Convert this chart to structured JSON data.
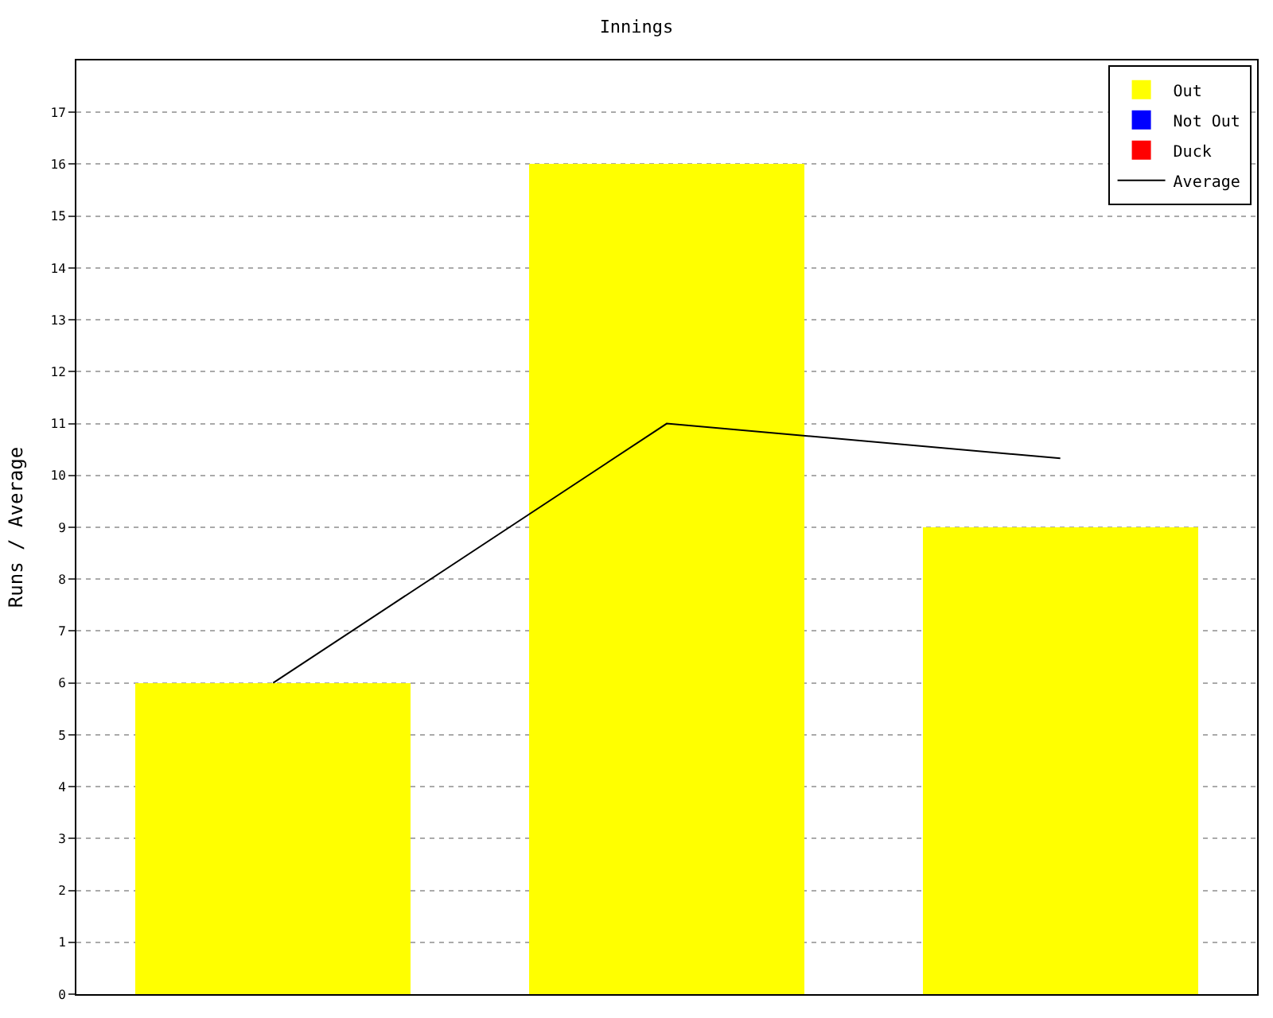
{
  "chart_data": {
    "type": "bar",
    "title": "Innings",
    "ylabel": "Runs / Average",
    "categories": [
      null,
      null,
      null
    ],
    "series": [
      {
        "name": "Average",
        "type": "line",
        "color": "#000000",
        "values": [
          6,
          11,
          10.33
        ]
      },
      {
        "name": "Out",
        "color": "#ffff00",
        "values": [
          6,
          16,
          9
        ]
      },
      {
        "name": "Not Out",
        "color": "#0000ff",
        "values": [
          null,
          null,
          null
        ]
      },
      {
        "name": "Duck",
        "color": "#ff0000",
        "values": [
          null,
          null,
          null
        ]
      }
    ],
    "stacked": true,
    "ylim": [
      0,
      18
    ],
    "yticks": [
      0,
      1,
      2,
      3,
      4,
      5,
      6,
      7,
      8,
      9,
      10,
      11,
      12,
      13,
      14,
      15,
      16,
      17
    ],
    "grid": "y",
    "legend": "top right",
    "tick_labels": "y",
    "marker": "none"
  }
}
